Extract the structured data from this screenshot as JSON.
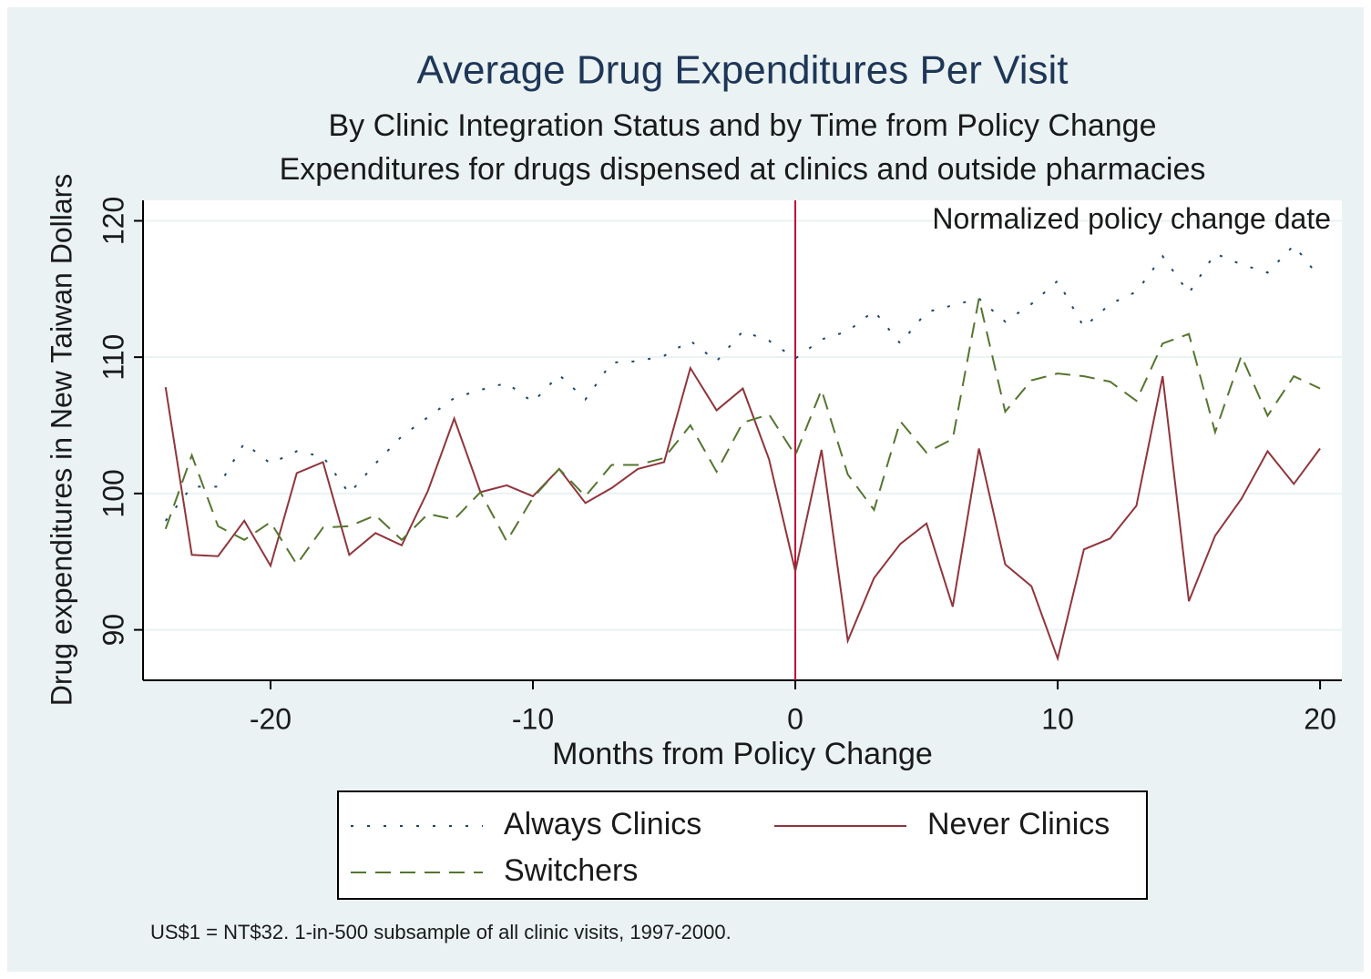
{
  "chart_data": {
    "type": "line",
    "title": "Average Drug Expenditures Per Visit",
    "subtitle": [
      "By Clinic Integration Status and by Time from Policy Change",
      "Expenditures for drugs dispensed at clinics and outside pharmacies"
    ],
    "xlabel": "Months from Policy Change",
    "ylabel": "Drug expenditures in New Taiwan Dollars",
    "note": "US$1 = NT$32. 1-in-500 subsample of all clinic visits, 1997-2000.",
    "annotation": "Normalized policy change date",
    "xline": 0,
    "xline_color": "#c10534",
    "x": [
      -24,
      -23,
      -22,
      -21,
      -20,
      -19,
      -18,
      -17,
      -16,
      -15,
      -14,
      -13,
      -12,
      -11,
      -10,
      -9,
      -8,
      -7,
      -6,
      -5,
      -4,
      -3,
      -2,
      -1,
      0,
      1,
      2,
      3,
      4,
      5,
      6,
      7,
      8,
      9,
      10,
      11,
      12,
      13,
      14,
      15,
      16,
      17,
      18,
      19,
      20
    ],
    "series": [
      {
        "name": "Always Clinics",
        "color": "#1a476f",
        "style": "dot",
        "values": [
          98,
          100.5,
          100.5,
          103.7,
          102.2,
          103.1,
          102.7,
          100,
          102.2,
          104.2,
          105.6,
          107,
          107.6,
          108.1,
          106.7,
          108.7,
          106.9,
          109.6,
          109.7,
          110.1,
          111.2,
          109.7,
          111.9,
          111.2,
          109.9,
          111.3,
          111.9,
          113.4,
          111,
          113.3,
          113.8,
          114.3,
          112.6,
          113.9,
          115.6,
          112.2,
          113.9,
          114.8,
          117.4,
          114.7,
          117.6,
          116.8,
          116.2,
          118.2,
          115.8
        ]
      },
      {
        "name": "Never Clinics",
        "color": "#90353b",
        "style": "solid",
        "values": [
          107.8,
          95.5,
          95.4,
          98,
          94.7,
          101.5,
          102.3,
          95.5,
          97.1,
          96.2,
          100.2,
          105.5,
          100.1,
          100.6,
          99.8,
          101.8,
          99.3,
          100.4,
          101.8,
          102.3,
          109.2,
          106.1,
          107.7,
          102.5,
          94.3,
          103.2,
          89.2,
          93.8,
          96.3,
          97.8,
          91.7,
          103.3,
          94.8,
          93.2,
          87.9,
          95.9,
          96.7,
          99.1,
          108.6,
          92.1,
          96.9,
          99.6,
          103.1,
          100.7,
          103.3
        ]
      },
      {
        "name": "Switchers",
        "color": "#55752f",
        "style": "dash",
        "values": [
          97.4,
          102.8,
          97.6,
          96.6,
          97.9,
          94.8,
          97.5,
          97.6,
          98.4,
          96.6,
          98.5,
          98.1,
          100.1,
          96.5,
          99.7,
          101.8,
          99.8,
          102.1,
          102.1,
          102.6,
          105,
          101.6,
          105.2,
          105.8,
          102.8,
          107.6,
          101.4,
          98.8,
          105.3,
          103,
          104,
          114.3,
          106,
          108.3,
          108.8,
          108.6,
          108.2,
          106.8,
          111,
          111.7,
          104.5,
          110.1,
          105.7,
          108.6,
          107.7
        ]
      }
    ],
    "xlim": [
      -24.86,
      20.83
    ],
    "ylim": [
      86.3,
      121.5
    ],
    "xticks": [
      -20,
      -10,
      0,
      10,
      20
    ],
    "yticks": [
      90,
      100,
      110,
      120
    ],
    "grid": true
  }
}
